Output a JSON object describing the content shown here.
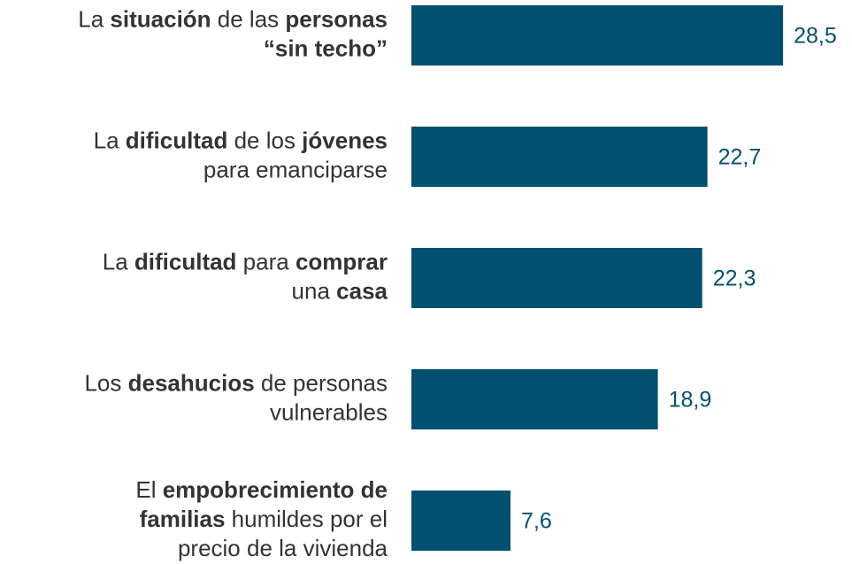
{
  "chart_data": {
    "type": "bar",
    "orientation": "horizontal",
    "color": "#02506f",
    "categories": [
      [
        [
          {
            "text": "La "
          },
          {
            "text": "situación",
            "bold": true
          },
          {
            "text": " de las "
          },
          {
            "text": "personas",
            "bold": true
          }
        ],
        [
          {
            "text": "“sin techo”",
            "bold": true
          }
        ]
      ],
      [
        [
          {
            "text": "La "
          },
          {
            "text": "dificultad",
            "bold": true
          },
          {
            "text": " de los "
          },
          {
            "text": "jóvenes",
            "bold": true
          }
        ],
        [
          {
            "text": "para emanciparse"
          }
        ]
      ],
      [
        [
          {
            "text": "La "
          },
          {
            "text": "dificultad",
            "bold": true
          },
          {
            "text": " para "
          },
          {
            "text": "comprar",
            "bold": true
          }
        ],
        [
          {
            "text": "una "
          },
          {
            "text": "casa",
            "bold": true
          }
        ]
      ],
      [
        [
          {
            "text": "Los "
          },
          {
            "text": "desahucios",
            "bold": true
          },
          {
            "text": " de personas"
          }
        ],
        [
          {
            "text": "vulnerables"
          }
        ]
      ],
      [
        [
          {
            "text": "El "
          },
          {
            "text": "empobrecimiento de",
            "bold": true
          }
        ],
        [
          {
            "text": "familias",
            "bold": true
          },
          {
            "text": " humildes por el"
          }
        ],
        [
          {
            "text": "precio de la vivienda"
          }
        ]
      ]
    ],
    "values": [
      28.5,
      22.7,
      22.3,
      18.9,
      7.6
    ],
    "value_labels": [
      "28,5",
      "22,7",
      "22,3",
      "18,9",
      "7,6"
    ]
  }
}
